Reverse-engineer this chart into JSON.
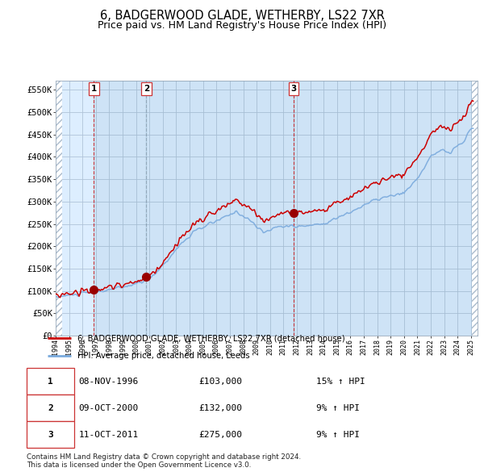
{
  "title": "6, BADGERWOOD GLADE, WETHERBY, LS22 7XR",
  "subtitle": "Price paid vs. HM Land Registry's House Price Index (HPI)",
  "title_fontsize": 10.5,
  "subtitle_fontsize": 9,
  "ylim": [
    0,
    570000
  ],
  "yticks": [
    0,
    50000,
    100000,
    150000,
    200000,
    250000,
    300000,
    350000,
    400000,
    450000,
    500000,
    550000
  ],
  "ytick_labels": [
    "£0",
    "£50K",
    "£100K",
    "£150K",
    "£200K",
    "£250K",
    "£300K",
    "£350K",
    "£400K",
    "£450K",
    "£500K",
    "£550K"
  ],
  "red_line_color": "#cc0000",
  "blue_line_color": "#7aaadd",
  "plot_bg": "#ddeeff",
  "hatch_color": "#aabbcc",
  "grid_color": "#b0c4d8",
  "vline_color_1": "#cc0000",
  "vline_color_2": "#8899aa",
  "vline_color_3": "#cc0000",
  "sale1_year": 1996.85,
  "sale1_price": 103000,
  "sale2_year": 2000.77,
  "sale2_price": 132000,
  "sale3_year": 2011.77,
  "sale3_price": 275000,
  "legend_line1": "6, BADGERWOOD GLADE, WETHERBY, LS22 7XR (detached house)",
  "legend_line2": "HPI: Average price, detached house, Leeds",
  "table_rows": [
    [
      "1",
      "08-NOV-1996",
      "£103,000",
      "15% ↑ HPI"
    ],
    [
      "2",
      "09-OCT-2000",
      "£132,000",
      "9% ↑ HPI"
    ],
    [
      "3",
      "11-OCT-2011",
      "£275,000",
      "9% ↑ HPI"
    ]
  ],
  "footnote": "Contains HM Land Registry data © Crown copyright and database right 2024.\nThis data is licensed under the Open Government Licence v3.0.",
  "marker_color": "#990000",
  "marker_size": 7,
  "xstart": 1994,
  "xend": 2025.5
}
